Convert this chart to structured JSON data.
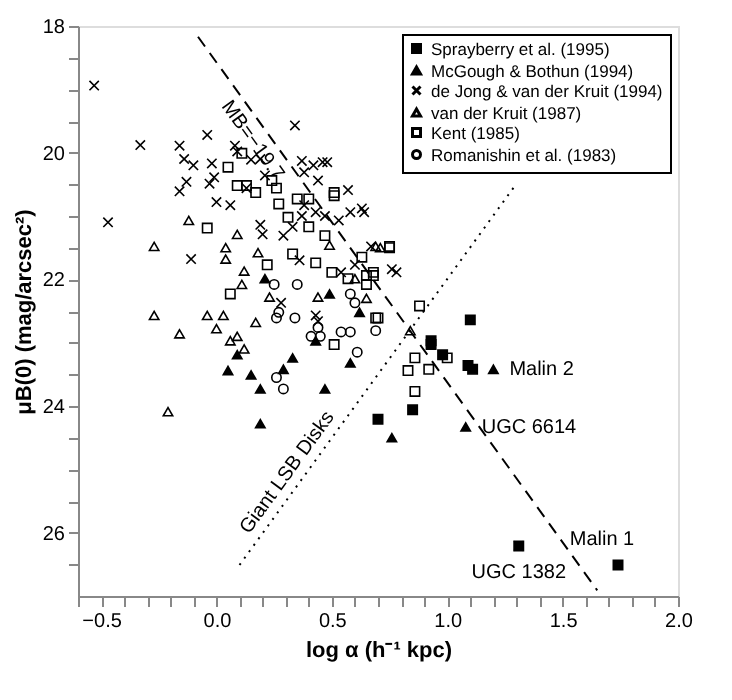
{
  "chart_data": {
    "type": "scatter",
    "xlabel": "log α (h⁻¹ kpc)",
    "ylabel": "μB(0) (mag/arcsec²)",
    "xlim": [
      -0.6,
      2.0
    ],
    "ylim": [
      27,
      18
    ],
    "xticks": [
      {
        "value": -0.6,
        "label": null
      },
      {
        "value": -0.5,
        "label": "−0.5"
      },
      {
        "value": -0.4,
        "label": null
      },
      {
        "value": -0.3,
        "label": null
      },
      {
        "value": -0.2,
        "label": null
      },
      {
        "value": -0.1,
        "label": null
      },
      {
        "value": 0,
        "label": "0.0"
      },
      {
        "value": 0.1,
        "label": null
      },
      {
        "value": 0.2,
        "label": null
      },
      {
        "value": 0.3,
        "label": null
      },
      {
        "value": 0.4,
        "label": null
      },
      {
        "value": 0.5,
        "label": "0.5"
      },
      {
        "value": 0.6,
        "label": null
      },
      {
        "value": 0.7,
        "label": null
      },
      {
        "value": 0.8,
        "label": null
      },
      {
        "value": 0.9,
        "label": null
      },
      {
        "value": 1.0,
        "label": "1.0"
      },
      {
        "value": 1.1,
        "label": null
      },
      {
        "value": 1.2,
        "label": null
      },
      {
        "value": 1.3,
        "label": null
      },
      {
        "value": 1.4,
        "label": null
      },
      {
        "value": 1.5,
        "label": "1.5"
      },
      {
        "value": 1.6,
        "label": null
      },
      {
        "value": 1.7,
        "label": null
      },
      {
        "value": 1.8,
        "label": null
      },
      {
        "value": 1.9,
        "label": null
      },
      {
        "value": 2.0,
        "label": "2.0"
      }
    ],
    "yticks": [
      18,
      {
        "value": 18.5,
        "label": null
      },
      {
        "value": 19,
        "label": null
      },
      {
        "value": 19.5,
        "label": null
      },
      20,
      {
        "value": 20.5,
        "label": null
      },
      {
        "value": 21,
        "label": null
      },
      {
        "value": 21.5,
        "label": null
      },
      22,
      {
        "value": 22.5,
        "label": null
      },
      {
        "value": 23,
        "label": null
      },
      {
        "value": 23.5,
        "label": null
      },
      24,
      {
        "value": 24.5,
        "label": null
      },
      {
        "value": 25,
        "label": null
      },
      {
        "value": 25.5,
        "label": null
      },
      26,
      {
        "value": 26.5,
        "label": null
      }
    ],
    "grid": false,
    "legend": "top right",
    "series": [
      {
        "type": "line",
        "color": "#000000",
        "line_style": "dashed",
        "x": [
          -0.08,
          1.65
        ],
        "values": [
          18.17,
          26.91
        ]
      },
      {
        "type": "line",
        "color": "#000000",
        "line_style": "dotted",
        "x": [
          0.1,
          1.29
        ],
        "values": [
          26.51,
          20.54
        ]
      },
      {
        "name": "Sprayberry et al. (1995)",
        "color": "#000000",
        "marker": "square",
        "x": [
          1.1,
          0.93,
          0.93,
          0.98,
          1.09,
          1.11,
          0.7,
          0.85,
          1.74,
          1.31
        ],
        "values": [
          22.64,
          22.97,
          23.03,
          23.19,
          23.36,
          23.42,
          24.21,
          24.06,
          26.51,
          26.21
        ]
      },
      {
        "name": "McGough & Bothun (1994)",
        "color": "#000000",
        "marker": "triangle",
        "x": [
          0.21,
          0.49,
          0.62,
          0.43,
          0.33,
          0.29,
          0.09,
          0.05,
          0.15,
          0.19,
          0.47,
          0.19,
          0.58,
          0.76,
          1.2,
          1.08
        ],
        "values": [
          21.99,
          22.23,
          22.52,
          22.97,
          23.24,
          23.42,
          23.19,
          23.44,
          23.51,
          23.73,
          23.73,
          24.28,
          23.32,
          24.5,
          23.42,
          24.33
        ]
      },
      {
        "name": "de Jong & van der Kruit (1994)",
        "color": "#000000",
        "marker": "cross",
        "x": [
          -0.53,
          -0.33,
          -0.16,
          -0.04,
          -0.14,
          -0.1,
          -0.13,
          -0.16,
          -0.02,
          -0.01,
          -0.03,
          0.08,
          0.09,
          0.15,
          0.13,
          0.19,
          0.21,
          0.34,
          0.37,
          0.42,
          0.48,
          0.44,
          0.38,
          0.0,
          0.06,
          -0.47,
          -0.11,
          0.19,
          0.2,
          0.29,
          0.33,
          0.37,
          0.38,
          0.43,
          0.47,
          0.53,
          0.58,
          0.57,
          0.63,
          0.64,
          0.67,
          0.76,
          0.43,
          0.44,
          0.54,
          0.36,
          0.6,
          0.28,
          0.46,
          0.78,
          1.31
        ],
        "values": [
          18.94,
          19.88,
          19.89,
          19.72,
          20.1,
          20.2,
          20.46,
          20.61,
          20.17,
          20.39,
          20.49,
          19.89,
          19.98,
          20.11,
          20.56,
          20.1,
          20.36,
          19.57,
          20.13,
          20.2,
          20.15,
          20.44,
          20.31,
          20.78,
          20.83,
          21.1,
          21.68,
          21.14,
          21.29,
          21.31,
          21.17,
          21.0,
          20.83,
          20.94,
          21.0,
          21.07,
          20.94,
          20.59,
          20.88,
          20.94,
          21.48,
          21.84,
          22.57,
          22.66,
          21.89,
          21.7,
          21.77,
          22.37,
          20.15,
          21.89,
          26.21
        ]
      },
      {
        "name": "van der Kruit (1987)",
        "color": "#000000",
        "marker": "triangle",
        "x": [
          -0.27,
          -0.12,
          -0.27,
          -0.04,
          0.03,
          0.04,
          0.04,
          0.09,
          0.12,
          0.11,
          0.18,
          0.44,
          0.65,
          0.71,
          -0.16,
          0.0,
          0.06,
          0.09,
          0.12,
          0.17,
          0.23,
          -0.21,
          0.49,
          0.69,
          0.6,
          0.84
        ],
        "values": [
          21.48,
          21.07,
          22.57,
          22.57,
          22.57,
          21.5,
          21.68,
          21.29,
          21.87,
          22.08,
          21.58,
          22.28,
          22.3,
          21.5,
          22.86,
          22.78,
          22.97,
          22.9,
          23.1,
          22.68,
          22.28,
          24.09,
          21.46,
          21.48,
          21.99,
          22.81
        ]
      },
      {
        "name": "Kent (1985)",
        "color": "#000000",
        "marker": "square",
        "x": [
          0.11,
          0.05,
          0.09,
          0.13,
          0.17,
          0.24,
          0.26,
          0.27,
          0.35,
          0.31,
          0.4,
          0.47,
          0.51,
          -0.04,
          0.22,
          0.33,
          0.43,
          0.5,
          0.57,
          0.65,
          0.68,
          0.06,
          0.69,
          0.75,
          0.4,
          0.51,
          0.63,
          0.75,
          0.68,
          0.65,
          0.7,
          0.51,
          0.88,
          0.86,
          0.83,
          0.92,
          1.0,
          0.86
        ],
        "values": [
          20.01,
          20.23,
          20.52,
          20.52,
          20.63,
          20.44,
          20.56,
          20.81,
          20.73,
          21.02,
          21.17,
          21.31,
          20.68,
          21.19,
          21.77,
          21.6,
          21.74,
          21.89,
          21.99,
          21.94,
          21.94,
          22.23,
          22.61,
          21.5,
          20.73,
          20.63,
          21.65,
          21.48,
          21.89,
          22.08,
          22.61,
          23.03,
          22.42,
          23.24,
          23.44,
          23.42,
          23.24,
          23.77
        ]
      },
      {
        "name": "Romanishin et al. (1983)",
        "color": "#000000",
        "marker": "circle",
        "x": [
          0.25,
          0.35,
          0.27,
          0.34,
          0.58,
          0.6,
          0.26,
          0.44,
          0.45,
          0.41,
          0.54,
          0.58,
          0.69,
          0.61,
          0.26,
          0.29
        ],
        "values": [
          22.08,
          22.08,
          22.52,
          22.61,
          22.23,
          22.37,
          22.61,
          22.76,
          22.9,
          22.9,
          22.83,
          22.83,
          22.81,
          23.15,
          23.55,
          23.73
        ]
      }
    ],
    "annotations": [
      "MB=−19.7",
      "Giant LSB Disks",
      {
        "text": "Malin 2",
        "x": 1.2,
        "y": 23.42
      },
      {
        "text": "UGC 6614",
        "x": 1.08,
        "y": 24.33
      },
      {
        "text": "Malin 1",
        "x": 1.74,
        "y": 26.51
      },
      {
        "text": "UGC 1382",
        "x": 1.31,
        "y": 26.21
      }
    ]
  }
}
